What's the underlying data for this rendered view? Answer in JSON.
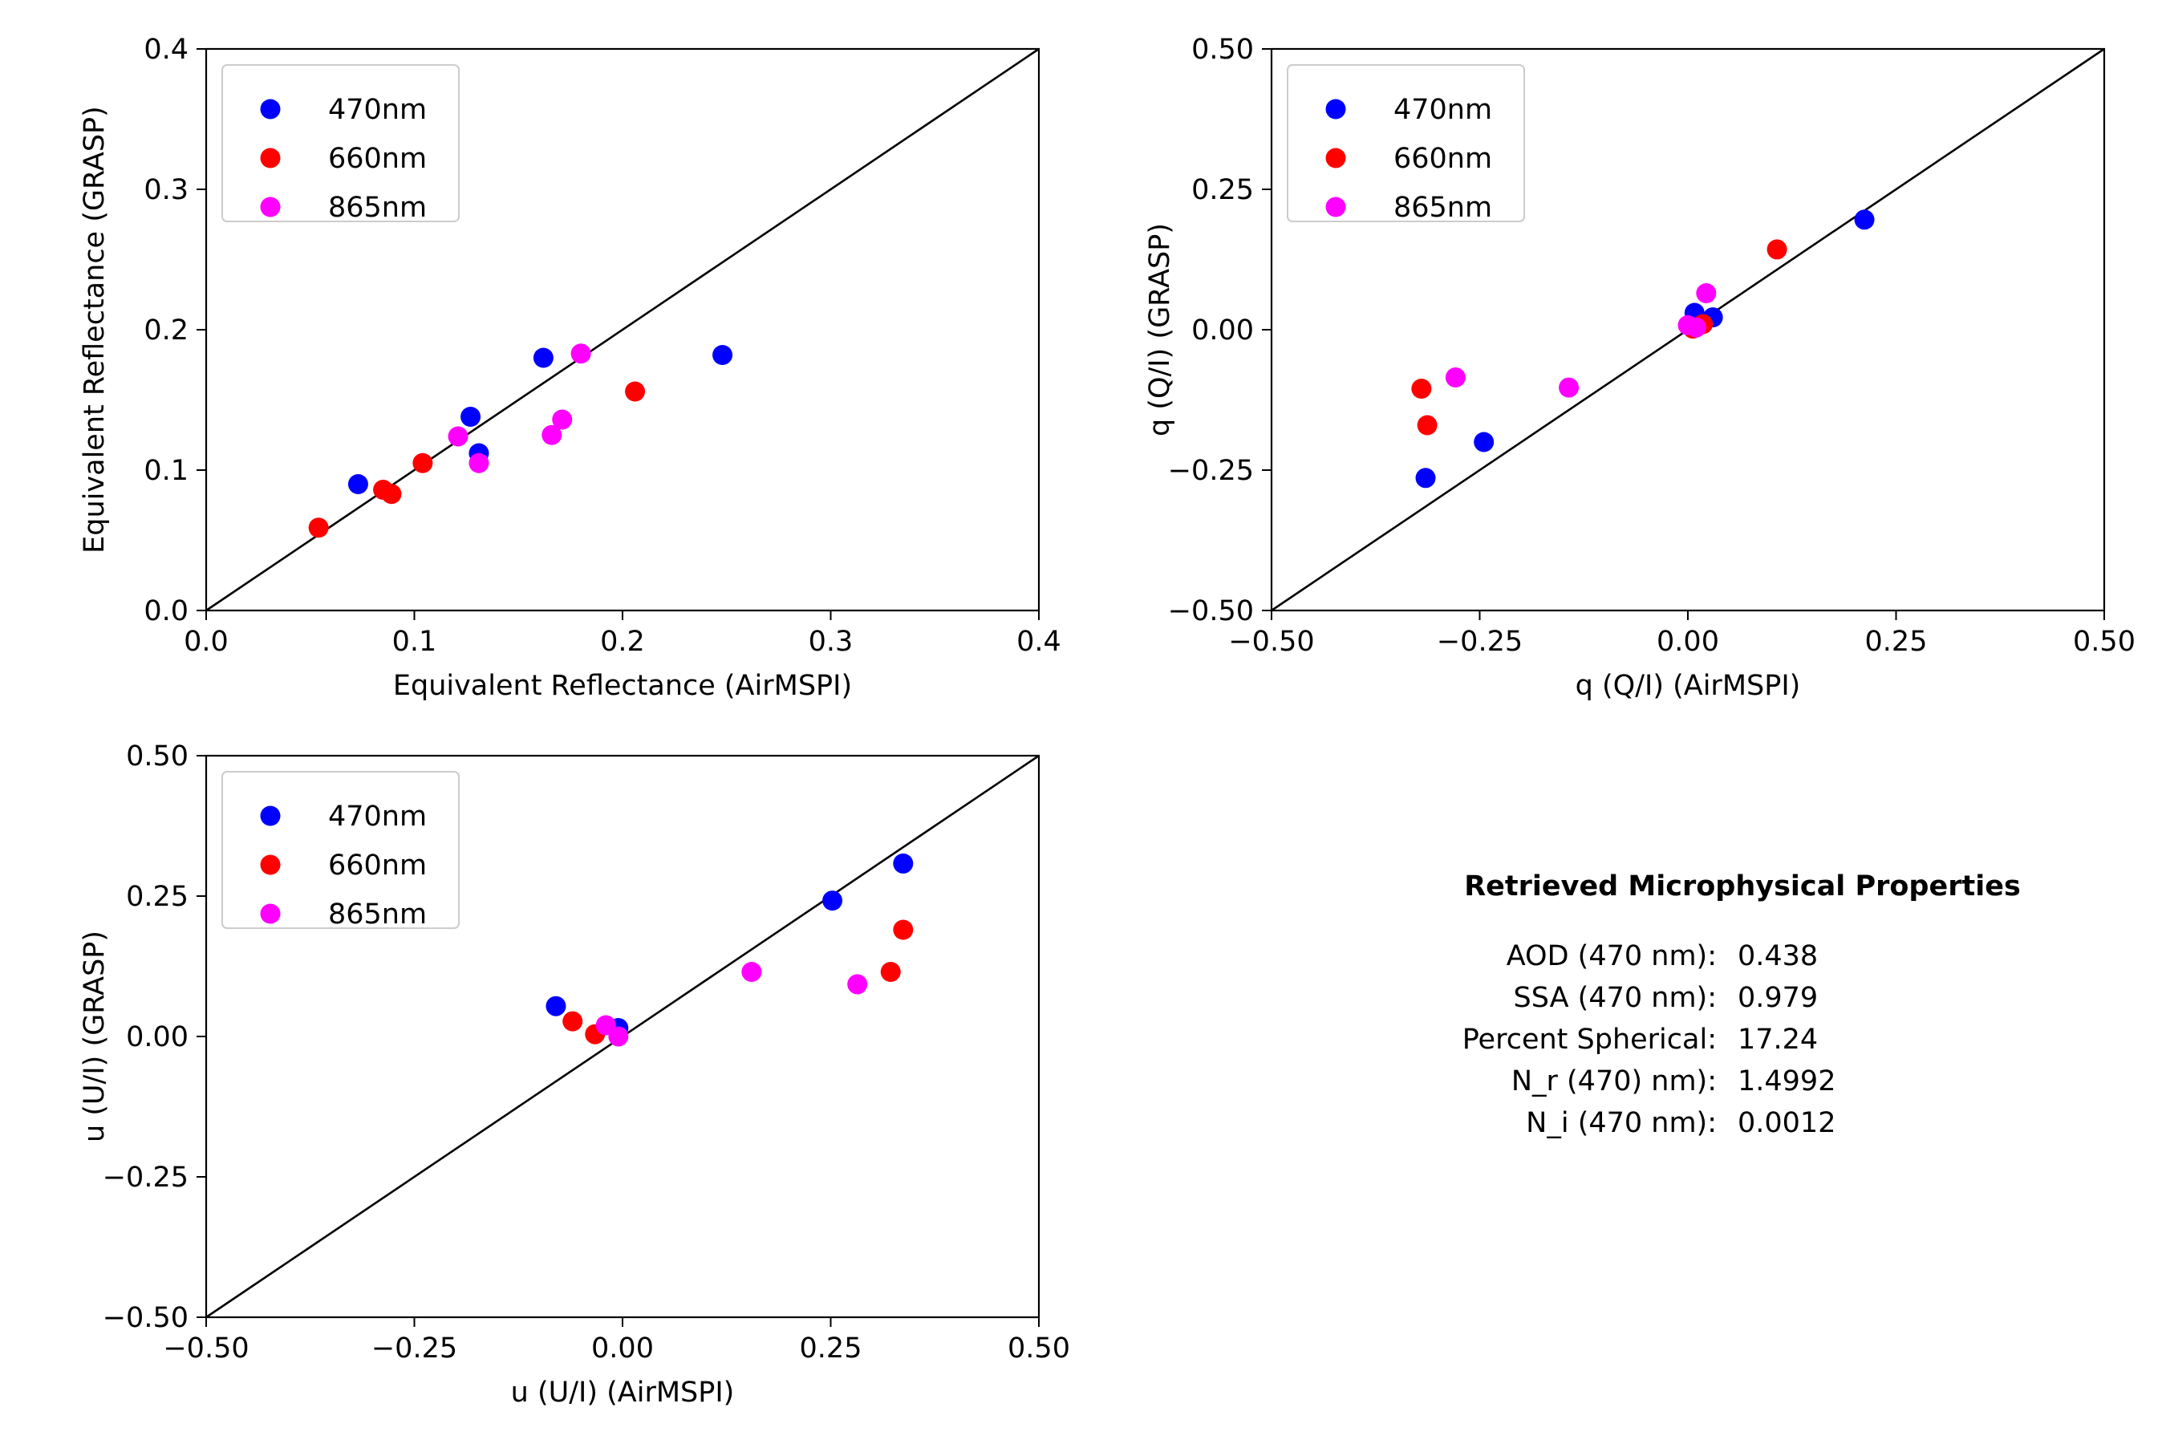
{
  "chart_data": [
    {
      "type": "scatter",
      "xlabel": "Equivalent Reflectance (AirMSPI)",
      "ylabel": "Equivalent Reflectance (GRASP)",
      "xlim": [
        0.0,
        0.4
      ],
      "ylim": [
        0.0,
        0.4
      ],
      "xticks": [
        "0.0",
        "0.1",
        "0.2",
        "0.3",
        "0.4"
      ],
      "yticks": [
        "0.0",
        "0.1",
        "0.2",
        "0.3",
        "0.4"
      ],
      "xtick_values": [
        0.0,
        0.1,
        0.2,
        0.3,
        0.4
      ],
      "ytick_values": [
        0.0,
        0.1,
        0.2,
        0.3,
        0.4
      ],
      "identity_line": true,
      "grid": false,
      "legend": "top-left",
      "series": [
        {
          "name": "470nm",
          "color": "#0000ff",
          "points": [
            [
              0.073,
              0.09
            ],
            [
              0.127,
              0.138
            ],
            [
              0.131,
              0.112
            ],
            [
              0.162,
              0.18
            ],
            [
              0.248,
              0.182
            ]
          ]
        },
        {
          "name": "660nm",
          "color": "#ff0000",
          "points": [
            [
              0.054,
              0.059
            ],
            [
              0.085,
              0.086
            ],
            [
              0.089,
              0.083
            ],
            [
              0.104,
              0.105
            ],
            [
              0.206,
              0.156
            ]
          ]
        },
        {
          "name": "865nm",
          "color": "#ff00ff",
          "points": [
            [
              0.121,
              0.124
            ],
            [
              0.131,
              0.105
            ],
            [
              0.166,
              0.125
            ],
            [
              0.171,
              0.136
            ],
            [
              0.18,
              0.183
            ]
          ]
        }
      ]
    },
    {
      "type": "scatter",
      "xlabel": "q (Q/I) (AirMSPI)",
      "ylabel": "q (Q/I) (GRASP)",
      "xlim": [
        -0.5,
        0.5
      ],
      "ylim": [
        -0.5,
        0.5
      ],
      "xticks": [
        "−0.50",
        "−0.25",
        "0.00",
        "0.25",
        "0.50"
      ],
      "yticks": [
        "−0.50",
        "−0.25",
        "0.00",
        "0.25",
        "0.50"
      ],
      "xtick_values": [
        -0.5,
        -0.25,
        0.0,
        0.25,
        0.5
      ],
      "ytick_values": [
        -0.5,
        -0.25,
        0.0,
        0.25,
        0.5
      ],
      "identity_line": true,
      "grid": false,
      "legend": "top-left",
      "series": [
        {
          "name": "470nm",
          "color": "#0000ff",
          "points": [
            [
              -0.315,
              -0.264
            ],
            [
              -0.245,
              -0.2
            ],
            [
              0.008,
              0.03
            ],
            [
              0.03,
              0.022
            ],
            [
              0.212,
              0.196
            ]
          ]
        },
        {
          "name": "660nm",
          "color": "#ff0000",
          "points": [
            [
              -0.32,
              -0.105
            ],
            [
              -0.313,
              -0.17
            ],
            [
              0.006,
              0.002
            ],
            [
              0.018,
              0.01
            ],
            [
              0.107,
              0.143
            ]
          ]
        },
        {
          "name": "865nm",
          "color": "#ff00ff",
          "points": [
            [
              -0.279,
              -0.085
            ],
            [
              -0.143,
              -0.103
            ],
            [
              0.0,
              0.008
            ],
            [
              0.01,
              0.004
            ],
            [
              0.022,
              0.065
            ]
          ]
        }
      ]
    },
    {
      "type": "scatter",
      "xlabel": "u (U/I) (AirMSPI)",
      "ylabel": "u (U/I) (GRASP)",
      "xlim": [
        -0.5,
        0.5
      ],
      "ylim": [
        -0.5,
        0.5
      ],
      "xticks": [
        "−0.50",
        "−0.25",
        "0.00",
        "0.25",
        "0.50"
      ],
      "yticks": [
        "−0.50",
        "−0.25",
        "0.00",
        "0.25",
        "0.50"
      ],
      "xtick_values": [
        -0.5,
        -0.25,
        0.0,
        0.25,
        0.5
      ],
      "ytick_values": [
        -0.5,
        -0.25,
        0.0,
        0.25,
        0.5
      ],
      "identity_line": true,
      "grid": false,
      "legend": "top-left",
      "series": [
        {
          "name": "470nm",
          "color": "#0000ff",
          "points": [
            [
              -0.08,
              0.054
            ],
            [
              -0.005,
              0.015
            ],
            [
              0.252,
              0.242
            ],
            [
              0.337,
              0.308
            ]
          ]
        },
        {
          "name": "660nm",
          "color": "#ff0000",
          "points": [
            [
              -0.06,
              0.027
            ],
            [
              -0.033,
              0.004
            ],
            [
              0.322,
              0.115
            ],
            [
              0.337,
              0.19
            ]
          ]
        },
        {
          "name": "865nm",
          "color": "#ff00ff",
          "points": [
            [
              -0.02,
              0.02
            ],
            [
              -0.005,
              0.0
            ],
            [
              0.155,
              0.115
            ],
            [
              0.282,
              0.093
            ]
          ]
        }
      ]
    }
  ],
  "properties": {
    "title": "Retrieved Microphysical Properties",
    "lines": [
      {
        "label": "AOD (470 nm):",
        "value": "0.438"
      },
      {
        "label": "SSA (470 nm):",
        "value": "0.979"
      },
      {
        "label": "Percent Spherical:",
        "value": "17.24"
      },
      {
        "label": "N_r (470) nm):",
        "value": "1.4992"
      },
      {
        "label": "N_i (470 nm):",
        "value": "0.0012"
      }
    ]
  }
}
